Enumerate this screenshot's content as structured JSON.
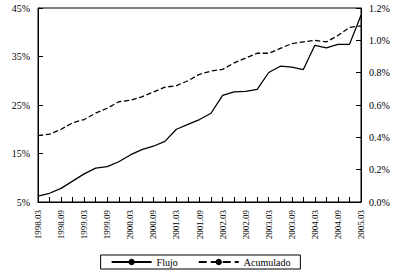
{
  "chart_data": {
    "type": "line",
    "categories": [
      "1998.03",
      null,
      "1998.09",
      null,
      "1999.03",
      null,
      "1999.09",
      null,
      "2000.03",
      null,
      "2000.09",
      null,
      "2001.03",
      null,
      "2001.09",
      null,
      "2002.03",
      null,
      "2002.09",
      null,
      "2003.03",
      null,
      "2003.09",
      null,
      "2004.03",
      null,
      "2004.09",
      null,
      "2005.03"
    ],
    "series": [
      {
        "name": "Flujo",
        "color": "#000000",
        "line_style": "solid",
        "values": [
          6.2,
          6.8,
          7.8,
          9.3,
          10.8,
          12.0,
          12.3,
          13.3,
          14.7,
          15.8,
          16.5,
          17.5,
          20.0,
          21.0,
          22.0,
          23.3,
          27.0,
          27.7,
          27.8,
          28.2,
          31.7,
          33.0,
          32.8,
          32.3,
          37.3,
          36.8,
          37.5,
          37.5,
          43.5
        ]
      },
      {
        "name": "Acumulado",
        "color": "#000000",
        "line_style": "dashed",
        "axis": "y2",
        "values": [
          0.41,
          0.42,
          0.45,
          0.49,
          0.51,
          0.55,
          0.58,
          0.62,
          0.63,
          0.65,
          0.68,
          0.71,
          0.72,
          0.75,
          0.79,
          0.81,
          0.82,
          0.86,
          0.89,
          0.92,
          0.92,
          0.95,
          0.98,
          0.99,
          1.0,
          0.99,
          1.03,
          1.08,
          1.09
        ]
      }
    ],
    "ylim": [
      5,
      45
    ],
    "yticks": [
      {
        "value": 5,
        "label": "5%"
      },
      {
        "value": 15,
        "label": "15%"
      },
      {
        "value": 25,
        "label": "25%"
      },
      {
        "value": 35,
        "label": "35%"
      },
      {
        "value": 45,
        "label": "45%"
      }
    ],
    "y2lim": [
      0,
      1.2
    ],
    "y2ticks": [
      {
        "value": 0,
        "label": "0.0%"
      },
      {
        "value": 0.2,
        "label": "0.2%"
      },
      {
        "value": 0.4,
        "label": "0.4%"
      },
      {
        "value": 0.6,
        "label": "0.6%"
      },
      {
        "value": 0.8,
        "label": "0.8%"
      },
      {
        "value": 1.0,
        "label": "1.0%"
      },
      {
        "value": 1.2,
        "label": "1.2%"
      }
    ],
    "grid": false,
    "legend": "bottom"
  }
}
